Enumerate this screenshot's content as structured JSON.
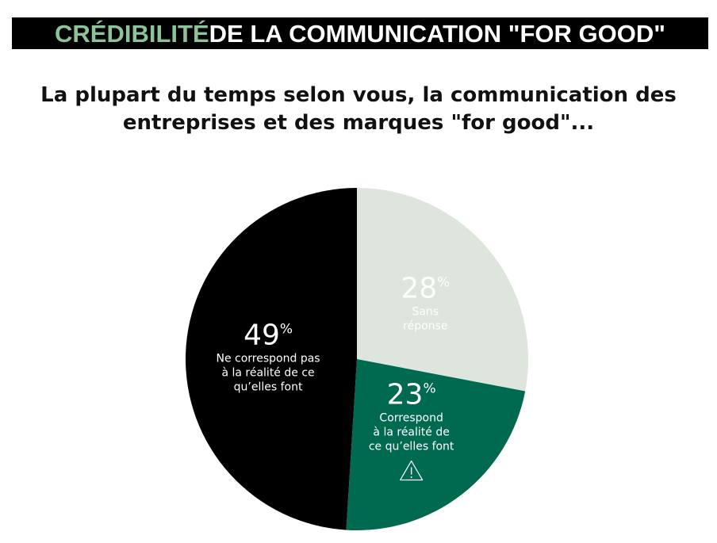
{
  "banner": {
    "accent_text": "CRÉDIBILITÉ",
    "rest_text": " DE LA COMMUNICATION \"FOR GOOD\"",
    "background": "#000000",
    "accent_color": "#8cc39a"
  },
  "question": {
    "line1": "La plupart du temps selon vous, la communication des",
    "line2": "entreprises et des marques \"for good\"..."
  },
  "chart_data": {
    "type": "pie",
    "title": "",
    "unit": "%",
    "slices": [
      {
        "value": 28,
        "value_label": "28",
        "label_lines": [
          "Sans",
          "réponse"
        ],
        "color": "#dde5dd",
        "icon": null
      },
      {
        "value": 23,
        "value_label": "23",
        "label_lines": [
          "Correspond",
          "à la réalité de",
          "ce qu’elles font"
        ],
        "color": "#006a50",
        "icon": "warning-triangle-icon"
      },
      {
        "value": 49,
        "value_label": "49",
        "label_lines": [
          "Ne correspond pas",
          "à la réalité de ce",
          "qu’elles font"
        ],
        "color": "#000000",
        "icon": null
      }
    ]
  }
}
